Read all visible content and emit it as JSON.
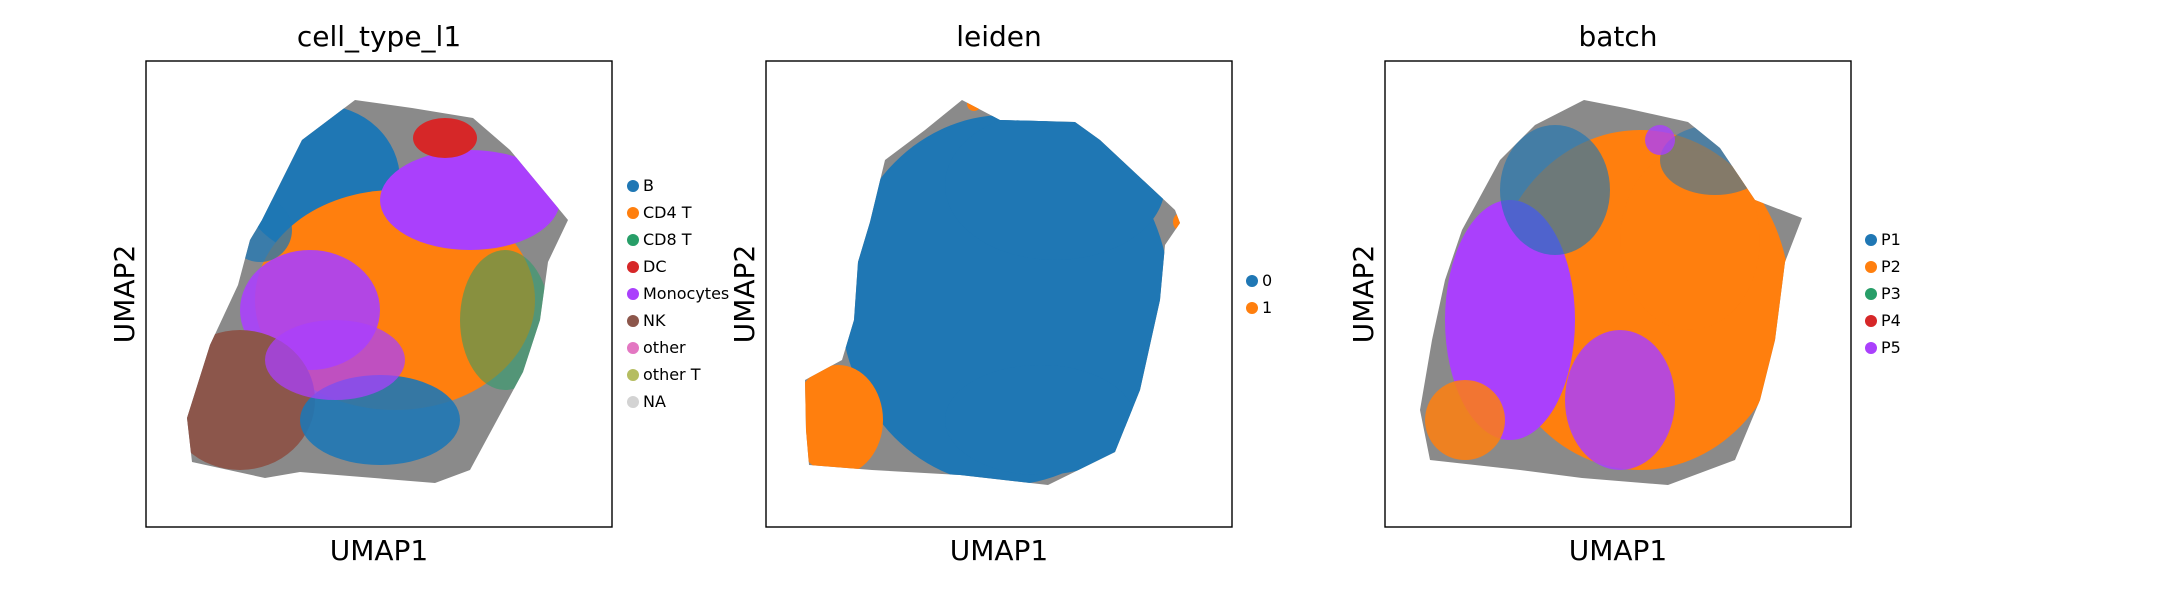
{
  "chart_data": [
    {
      "type": "scatter",
      "title": "cell_type_l1",
      "xlabel": "UMAP1",
      "ylabel": "UMAP2",
      "legend": {
        "placement": "right",
        "items": [
          {
            "label": "B",
            "color": "#1f77b4"
          },
          {
            "label": "CD4 T",
            "color": "#ff7f0e"
          },
          {
            "label": "CD8 T",
            "color": "#279e68"
          },
          {
            "label": "DC",
            "color": "#d62728"
          },
          {
            "label": "Monocytes",
            "color": "#aa40fc"
          },
          {
            "label": "NK",
            "color": "#8c564b"
          },
          {
            "label": "other",
            "color": "#e377c2"
          },
          {
            "label": "other T",
            "color": "#b5bd61"
          },
          {
            "label": "NA",
            "color": "#d3d3d3"
          }
        ]
      },
      "grid": false
    },
    {
      "type": "scatter",
      "title": "leiden",
      "xlabel": "UMAP1",
      "ylabel": "UMAP2",
      "legend": {
        "placement": "right",
        "items": [
          {
            "label": "0",
            "color": "#1f77b4"
          },
          {
            "label": "1",
            "color": "#ff7f0e"
          }
        ]
      },
      "grid": false
    },
    {
      "type": "scatter",
      "title": "batch",
      "xlabel": "UMAP1",
      "ylabel": "UMAP2",
      "legend": {
        "placement": "right",
        "items": [
          {
            "label": "P1",
            "color": "#1f77b4"
          },
          {
            "label": "P2",
            "color": "#ff7f0e"
          },
          {
            "label": "P3",
            "color": "#279e68"
          },
          {
            "label": "P4",
            "color": "#d62728"
          },
          {
            "label": "P5",
            "color": "#aa40fc"
          }
        ]
      },
      "grid": false
    }
  ]
}
